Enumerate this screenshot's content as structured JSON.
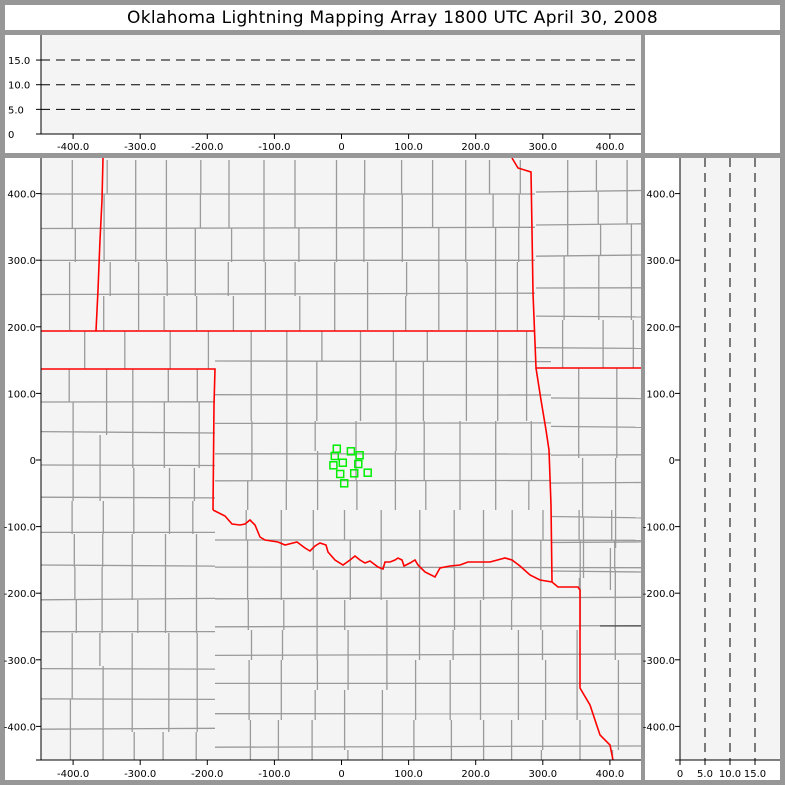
{
  "title": "Oklahoma Lightning Mapping Array   1800 UTC  April 30, 2008",
  "colors": {
    "background": "#979797",
    "plot_background": "#f4f4f4",
    "county_lines": "#9a9a9a",
    "state_lines": "#ff0000",
    "sources": "#00ee00",
    "altitude_gridlines": "#000000"
  },
  "plan_view": {
    "x_ticks": [
      "-400.0",
      "-300.0",
      "-200.0",
      "-100.0",
      "0",
      "100.0",
      "200.0",
      "300.0",
      "400.0"
    ],
    "x_tick_values": [
      -400,
      -300,
      -200,
      -100,
      0,
      100,
      200,
      300,
      400
    ],
    "y_ticks": [
      "400.0",
      "300.0",
      "200.0",
      "100.0",
      "0",
      "-100.0",
      "-200.0",
      "-300.0",
      "-400.0"
    ],
    "y_tick_values": [
      400,
      300,
      200,
      100,
      0,
      -100,
      -200,
      -300,
      -400
    ],
    "xlim": [
      -450,
      450
    ],
    "ylim": [
      -450,
      450
    ]
  },
  "top_view": {
    "y_ticks": [
      "0",
      "5.0",
      "10.0",
      "15.0"
    ],
    "y_tick_values": [
      0,
      5,
      10,
      15
    ],
    "dashed_levels": [
      5,
      10,
      15
    ],
    "x_ticks": [
      "-400.0",
      "-300.0",
      "-200.0",
      "-100.0",
      "0",
      "100.0",
      "200.0",
      "300.0",
      "400.0"
    ],
    "x_tick_values": [
      -400,
      -300,
      -200,
      -100,
      0,
      100,
      200,
      300,
      400
    ]
  },
  "side_view": {
    "x_ticks": [
      "0",
      "5.0",
      "10.0",
      "15.0"
    ],
    "x_tick_values": [
      0,
      5,
      10,
      15
    ],
    "dashed_levels": [
      5,
      10,
      15
    ],
    "y_ticks": [
      "400.0",
      "300.0",
      "200.0",
      "100.0",
      "0",
      "-100.0",
      "-200.0",
      "-300.0",
      "-400.0"
    ],
    "y_tick_values": [
      400,
      300,
      200,
      100,
      0,
      -100,
      -200,
      -300,
      -400
    ]
  },
  "chart_data": {
    "type": "scatter",
    "title": "Oklahoma Lightning Mapping Array   1800 UTC  April 30, 2008",
    "xlim": [
      -450,
      450
    ],
    "ylim": [
      -450,
      450
    ],
    "series": [
      {
        "marker": "open-square",
        "color": "#00ee00",
        "points": [
          {
            "x": -7,
            "y": 17
          },
          {
            "x": 14,
            "y": 13
          },
          {
            "x": 27,
            "y": 7
          },
          {
            "x": -10,
            "y": 6
          },
          {
            "x": 2,
            "y": -4
          },
          {
            "x": -12,
            "y": -8
          },
          {
            "x": 25,
            "y": -6
          },
          {
            "x": 39,
            "y": -19
          },
          {
            "x": 19,
            "y": -20
          },
          {
            "x": -2,
            "y": -21
          },
          {
            "x": 4,
            "y": -35
          }
        ]
      }
    ]
  }
}
